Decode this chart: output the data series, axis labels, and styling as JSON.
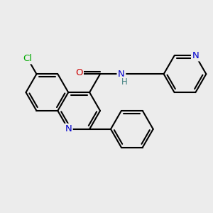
{
  "background_color": "#ececec",
  "bond_color": "#000000",
  "bond_width": 1.5,
  "atom_colors": {
    "N": "#0000cc",
    "O": "#cc0000",
    "Cl": "#00aa00",
    "H": "#408080",
    "C": "#000000"
  },
  "font_size": 9.5,
  "fig_width": 3.0,
  "fig_height": 3.0,
  "dpi": 100
}
